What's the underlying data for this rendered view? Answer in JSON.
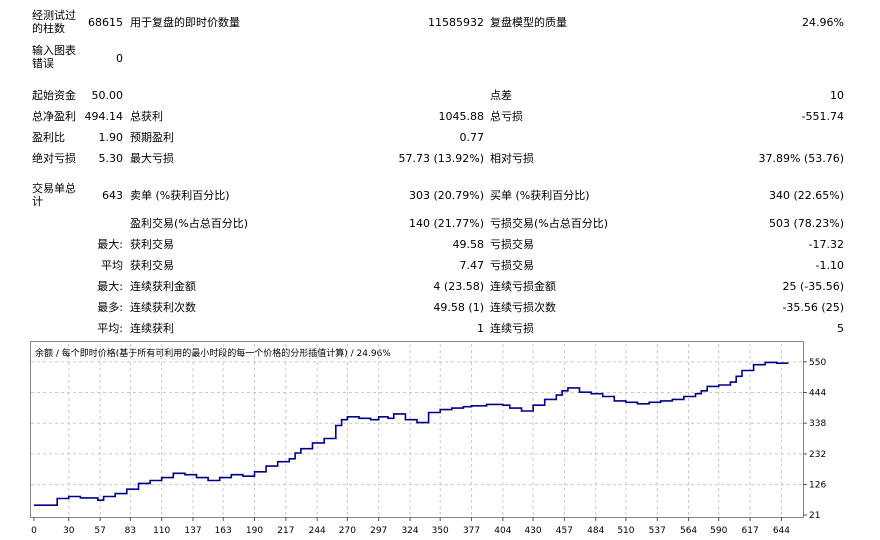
{
  "report": {
    "row1": {
      "l1": "经测试过\n的柱数",
      "v1": "68615",
      "l2": "用于复盘的即时价数量",
      "v2": "11585932",
      "l3": "复盘模型的质量",
      "v3": "24.96%"
    },
    "row2": {
      "l1": "输入图表\n错误",
      "v1": "0"
    },
    "row3": {
      "l1": "起始资金",
      "v1": "50.00",
      "l3": "点差",
      "v3": "10"
    },
    "row4": {
      "l1": "总净盈利",
      "v1": "494.14",
      "l2": "总获利",
      "v2": "1045.88",
      "l3": "总亏损",
      "v3": "-551.74"
    },
    "row5": {
      "l1": "盈利比",
      "v1": "1.90",
      "l2": "预期盈利",
      "v2": "0.77"
    },
    "row6": {
      "l1": "绝对亏损",
      "v1": "5.30",
      "l2": "最大亏损",
      "v2": "57.73 (13.92%)",
      "l3": "相对亏损",
      "v3": "37.89% (53.76)"
    },
    "row7": {
      "l1": "交易单总\n计",
      "v1": "643",
      "l2": "卖单 (%获利百分比)",
      "v2": "303 (20.79%)",
      "l3": "买单 (%获利百分比)",
      "v3": "340 (22.65%)"
    },
    "row8": {
      "l2": "盈利交易(%占总百分比)",
      "v2": "140 (21.77%)",
      "l3": "亏损交易(%占总百分比)",
      "v3": "503 (78.23%)"
    },
    "row9": {
      "v1": "最大:",
      "l2": "获利交易",
      "v2": "49.58",
      "l3": "亏损交易",
      "v3": "-17.32"
    },
    "row10": {
      "v1": "平均",
      "l2": "获利交易",
      "v2": "7.47",
      "l3": "亏损交易",
      "v3": "-1.10"
    },
    "row11": {
      "v1": "最大:",
      "l2": "连续获利金额",
      "v2": "4 (23.58)",
      "l3": "连续亏损金额",
      "v3": "25 (-35.56)"
    },
    "row12": {
      "v1": "最多:",
      "l2": "连续获利次数",
      "v2": "49.58 (1)",
      "l3": "连续亏损次数",
      "v3": "-35.56 (25)"
    },
    "row13": {
      "v1": "平均:",
      "l2": "连续获利",
      "v2": "1",
      "l3": "连续亏损",
      "v3": "5"
    }
  },
  "chart_caption": "余额 / 每个即时价格(基于所有可利用的最小时段的每一个价格的分形插值计算) / 24.96%",
  "chart_data": {
    "type": "line",
    "title": "余额 / 每个即时价格(基于所有可利用的最小时段的每一个价格的分形插值计算) / 24.96%",
    "x_ticks": [
      "0",
      "30",
      "57",
      "83",
      "110",
      "137",
      "163",
      "190",
      "217",
      "244",
      "270",
      "297",
      "324",
      "350",
      "377",
      "404",
      "430",
      "457",
      "484",
      "510",
      "537",
      "564",
      "590",
      "617",
      "644"
    ],
    "y_ticks": [
      "21",
      "126",
      "232",
      "338",
      "444",
      "550"
    ],
    "xlim": [
      0,
      660
    ],
    "ylim": [
      21,
      570
    ],
    "grid": true,
    "line_color": "#00008b",
    "series": [
      {
        "name": "",
        "x": [
          0,
          15,
          20,
          30,
          40,
          55,
          60,
          70,
          80,
          90,
          100,
          110,
          120,
          130,
          140,
          150,
          160,
          170,
          180,
          190,
          200,
          210,
          220,
          225,
          230,
          240,
          250,
          260,
          265,
          270,
          280,
          290,
          297,
          305,
          310,
          320,
          330,
          340,
          350,
          360,
          370,
          377,
          390,
          404,
          410,
          420,
          430,
          440,
          450,
          455,
          460,
          470,
          480,
          490,
          500,
          510,
          520,
          530,
          540,
          550,
          560,
          570,
          575,
          580,
          590,
          600,
          605,
          610,
          620,
          630,
          640,
          650
        ],
        "y": [
          55,
          55,
          78,
          85,
          80,
          72,
          85,
          95,
          110,
          130,
          140,
          150,
          165,
          160,
          150,
          140,
          150,
          160,
          155,
          170,
          190,
          205,
          215,
          235,
          250,
          270,
          285,
          330,
          350,
          360,
          355,
          350,
          360,
          355,
          370,
          350,
          340,
          375,
          385,
          390,
          395,
          398,
          403,
          400,
          390,
          380,
          400,
          420,
          435,
          450,
          460,
          445,
          440,
          430,
          415,
          410,
          405,
          410,
          415,
          420,
          430,
          440,
          450,
          465,
          470,
          480,
          500,
          520,
          540,
          548,
          545,
          545
        ]
      }
    ]
  }
}
